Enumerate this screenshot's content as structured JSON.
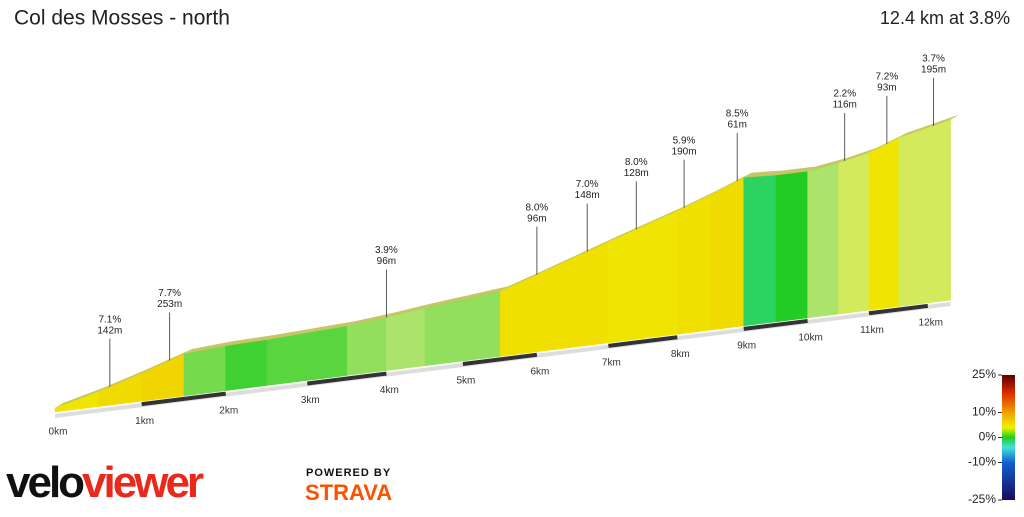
{
  "chart_data": {
    "type": "elevation-profile",
    "title": "Col des Mosses - north",
    "subtitle": "12.4 km at 3.8%",
    "xlim": [
      0,
      12.4
    ],
    "xticks": [
      {
        "value": 0,
        "label": "0km"
      },
      {
        "value": 1,
        "label": "1km"
      },
      {
        "value": 2,
        "label": "2km"
      },
      {
        "value": 3,
        "label": "3km"
      },
      {
        "value": 4,
        "label": "4km"
      },
      {
        "value": 5,
        "label": "5km"
      },
      {
        "value": 6,
        "label": "6km"
      },
      {
        "value": 7,
        "label": "7km"
      },
      {
        "value": 8,
        "label": "8km"
      },
      {
        "value": 9,
        "label": "9km"
      },
      {
        "value": 10,
        "label": "10km"
      },
      {
        "value": 11,
        "label": "11km"
      },
      {
        "value": 12,
        "label": "12km"
      }
    ],
    "segments": {
      "x": [
        0,
        0.5,
        1,
        1.5,
        2,
        2.5,
        3,
        3.5,
        4,
        4.5,
        5,
        5.5,
        6,
        6.5,
        7,
        7.5,
        8,
        8.5,
        9,
        9.5,
        10,
        10.5,
        11,
        11.5,
        12,
        12.4
      ],
      "grades": [
        6,
        7,
        7.5,
        1.5,
        0.5,
        1,
        1,
        2,
        2.5,
        2,
        2,
        6.5,
        6.5,
        6.5,
        6,
        6,
        6.5,
        7,
        -1,
        0,
        2.5,
        3.5,
        6,
        3.5,
        3.5
      ]
    },
    "annotations": [
      {
        "x": 0.63,
        "grade": "7.1%",
        "length": "142m"
      },
      {
        "x": 1.33,
        "grade": "7.7%",
        "length": "253m"
      },
      {
        "x": 4.0,
        "grade": "3.9%",
        "length": "96m"
      },
      {
        "x": 6.0,
        "grade": "8.0%",
        "length": "96m"
      },
      {
        "x": 6.7,
        "grade": "7.0%",
        "length": "148m"
      },
      {
        "x": 7.4,
        "grade": "8.0%",
        "length": "128m"
      },
      {
        "x": 8.1,
        "grade": "5.9%",
        "length": "190m"
      },
      {
        "x": 8.9,
        "grade": "8.5%",
        "length": "61m"
      },
      {
        "x": 10.6,
        "grade": "2.2%",
        "length": "116m"
      },
      {
        "x": 11.3,
        "grade": "7.2%",
        "length": "93m"
      },
      {
        "x": 12.1,
        "grade": "3.7%",
        "length": "195m"
      }
    ],
    "color_scale": {
      "lim": [
        -25,
        25
      ],
      "ticks": [
        {
          "value": 25,
          "label": "25%"
        },
        {
          "value": 10,
          "label": "10%"
        },
        {
          "value": 0,
          "label": "0%"
        },
        {
          "value": -10,
          "label": "-10%"
        },
        {
          "value": -25,
          "label": "-25%"
        }
      ]
    }
  },
  "branding": {
    "logo": "veloviewer",
    "logo_part1": "velo",
    "logo_part2": "viewer",
    "powered": "POWERED BY",
    "strava": "STRAVA"
  }
}
